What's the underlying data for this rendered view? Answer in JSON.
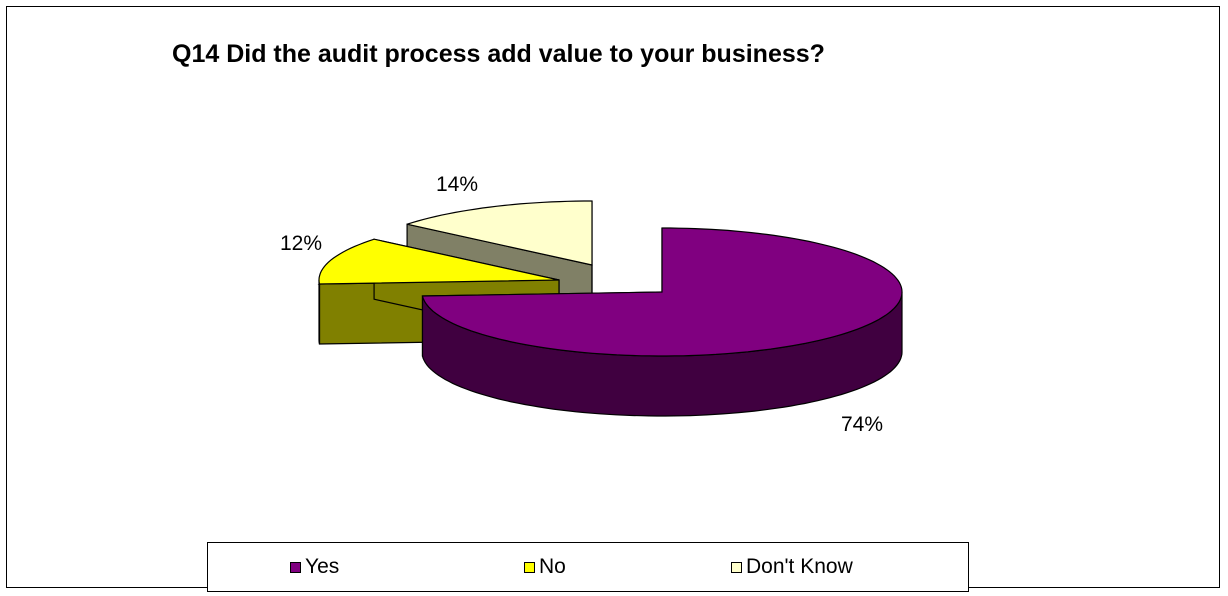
{
  "chart_data": {
    "type": "pie",
    "title": "Q14 Did the audit process add value to your business?",
    "three_d": true,
    "exploded": true,
    "categories": [
      "Yes",
      "No",
      "Don't Know"
    ],
    "values": [
      74,
      12,
      14
    ],
    "data_labels": [
      "74%",
      "12%",
      "14%"
    ],
    "colors": [
      "#800080",
      "#FFFF00",
      "#FFFFCC"
    ],
    "side_colors": [
      "#400040",
      "#808000",
      "#808066"
    ],
    "legend_position": "bottom",
    "legend": [
      {
        "label": "Yes",
        "color": "#800080"
      },
      {
        "label": "No",
        "color": "#FFFF00"
      },
      {
        "label": "Don't Know",
        "color": "#FFFFCC"
      }
    ]
  }
}
